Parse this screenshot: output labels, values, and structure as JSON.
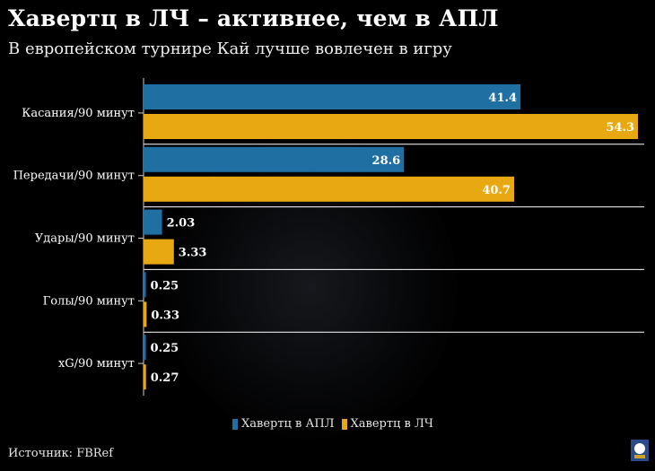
{
  "title": "Хавертц в ЛЧ – активнее, чем в АПЛ",
  "subtitle": "В европейском турнире Кай лучше вовлечен в игру",
  "source": "Источник: FBRef",
  "colors": {
    "apl": "#1f6fa3",
    "lch": "#e8a812",
    "background": "#000000"
  },
  "logo_icon": "team-crest-icon",
  "chart_data": {
    "type": "bar",
    "orientation": "horizontal",
    "categories": [
      "Касания/90 минут",
      "Передачи/90 минут",
      "Удары/90 минут",
      "Голы/90 минут",
      "xG/90 минут"
    ],
    "series": [
      {
        "name": "Хавертц в АПЛ",
        "values": [
          41.4,
          28.6,
          2.03,
          0.25,
          0.25
        ],
        "labels": [
          "41.4",
          "28.6",
          "2.03",
          "0.25",
          "0.25"
        ]
      },
      {
        "name": "Хавертц в ЛЧ",
        "values": [
          54.3,
          40.7,
          3.33,
          0.33,
          0.27
        ],
        "labels": [
          "54.3",
          "40.7",
          "3.33",
          "0.33",
          "0.27"
        ]
      }
    ],
    "xlim": [
      0,
      54.3
    ],
    "legend_position": "bottom-center"
  }
}
